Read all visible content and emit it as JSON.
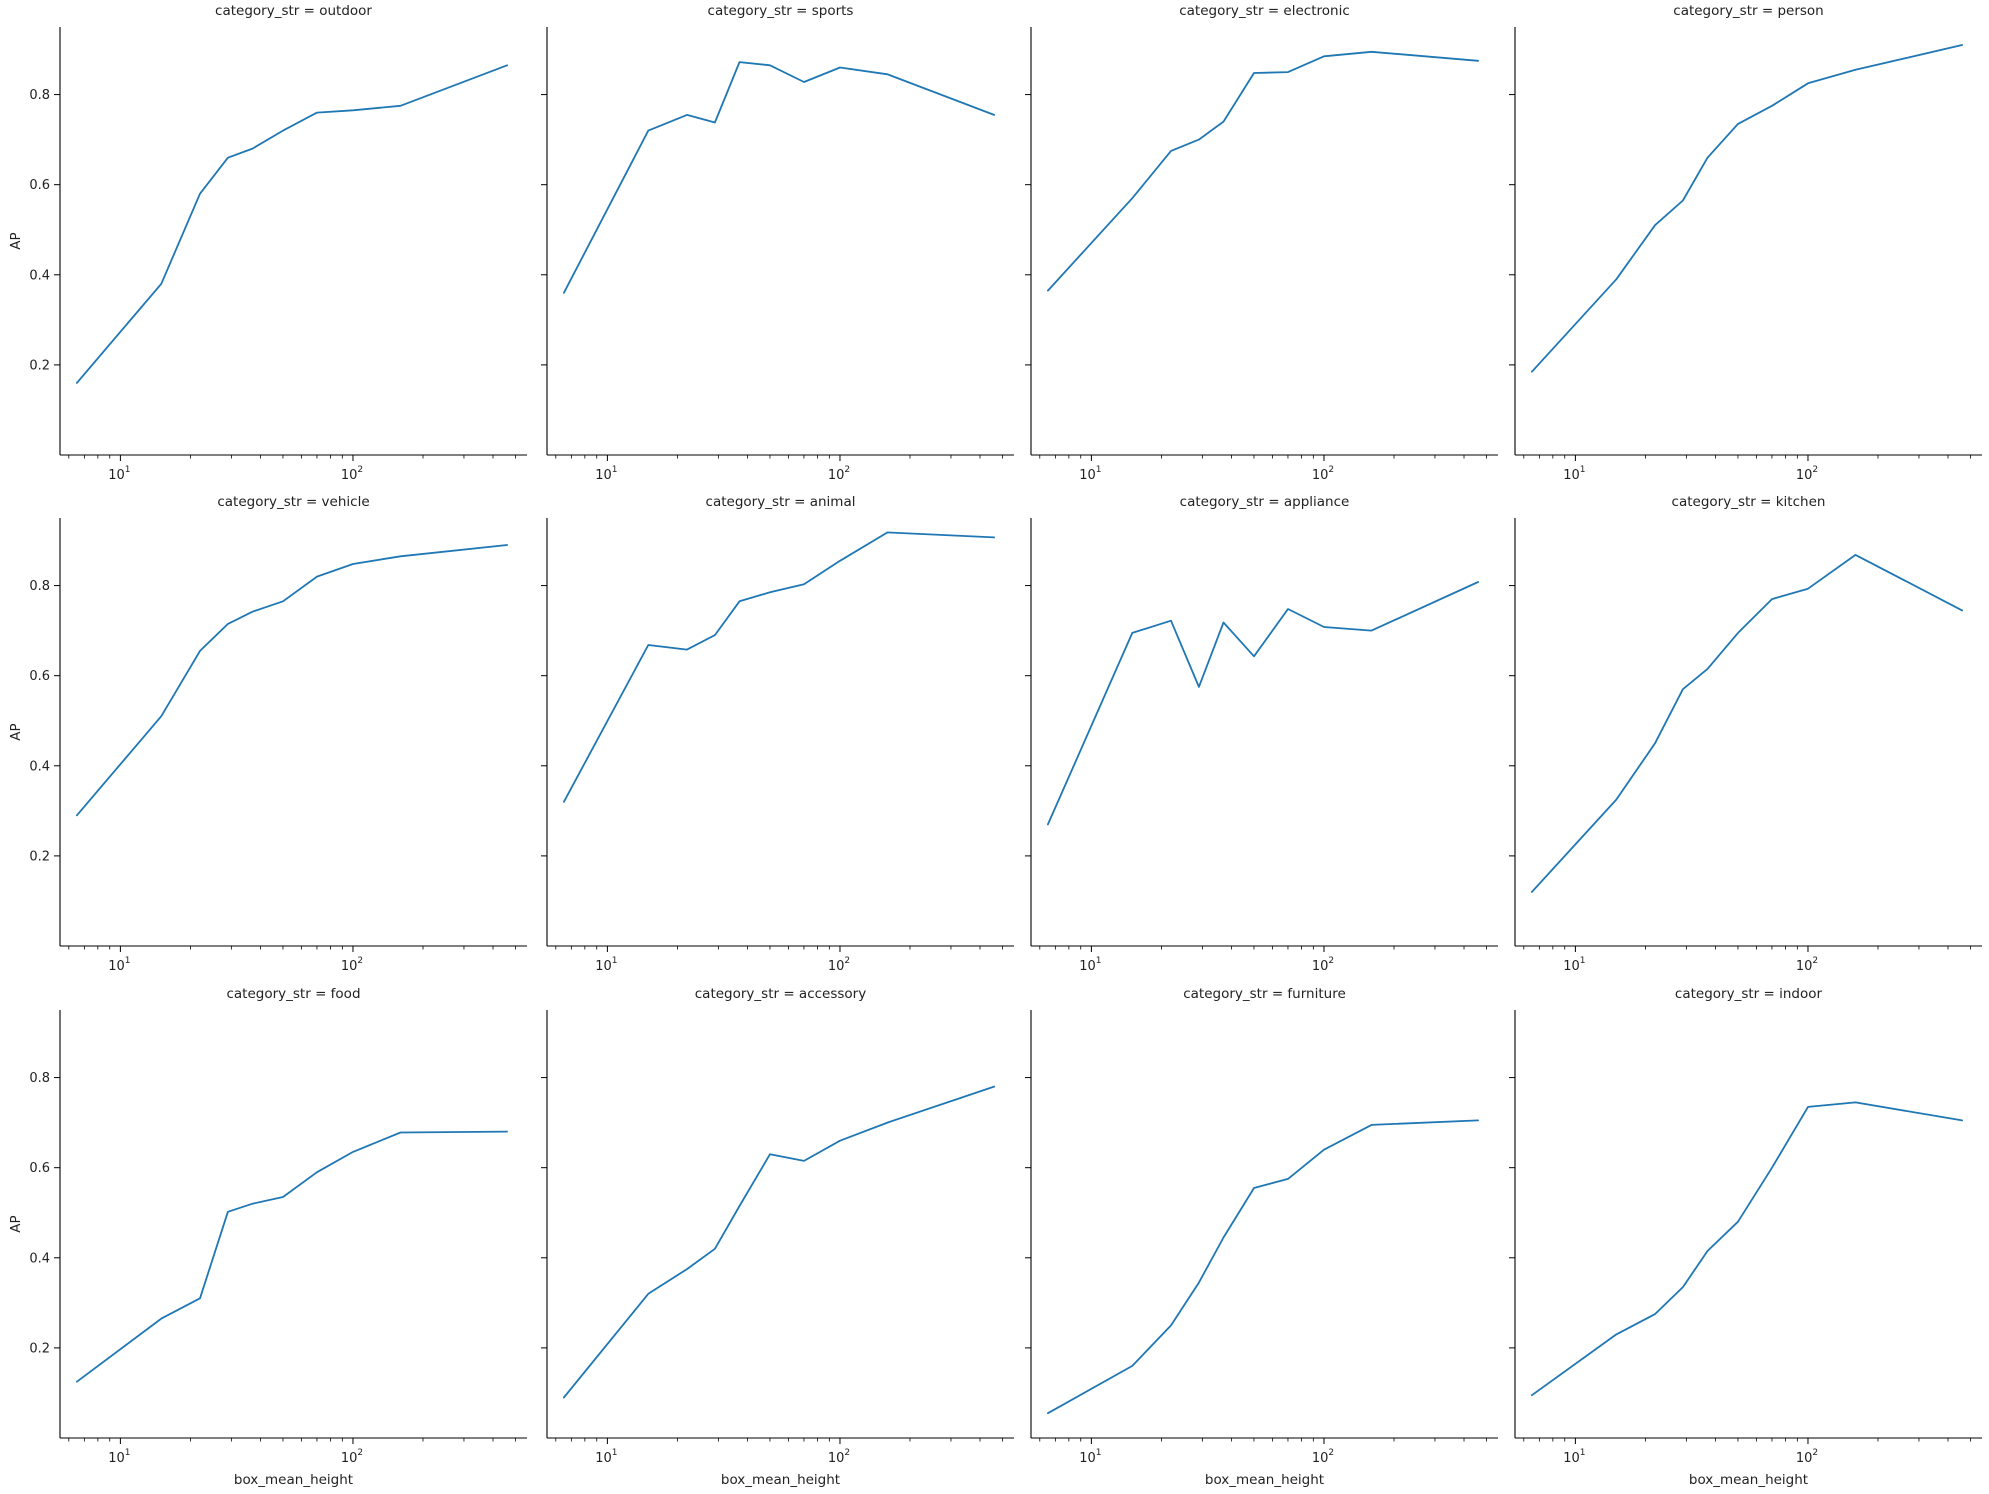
{
  "colors": {
    "line": "#1f77b4",
    "axis": "#000000",
    "text": "#222222"
  },
  "chart_data": {
    "type": "line",
    "facet_variable": "category_str",
    "xlabel": "box_mean_height",
    "ylabel": "AP",
    "x_scale": "log",
    "xlim": [
      5.5,
      560
    ],
    "ylim": [
      0.0,
      0.95
    ],
    "x_ticks": [
      {
        "base": "10",
        "exp": "1",
        "value": 10
      },
      {
        "base": "10",
        "exp": "2",
        "value": 100
      }
    ],
    "y_ticks": [
      {
        "label": "0.2",
        "value": 0.2
      },
      {
        "label": "0.4",
        "value": 0.4
      },
      {
        "label": "0.6",
        "value": 0.6
      },
      {
        "label": "0.8",
        "value": 0.8
      }
    ],
    "x": [
      6.5,
      15,
      22,
      29,
      37,
      50,
      70,
      100,
      160,
      460
    ],
    "panels": [
      {
        "title": "category_str = outdoor",
        "y": [
          0.16,
          0.38,
          0.58,
          0.66,
          0.68,
          0.72,
          0.76,
          0.765,
          0.775,
          0.865
        ]
      },
      {
        "title": "category_str = sports",
        "y": [
          0.36,
          0.72,
          0.755,
          0.738,
          0.872,
          0.865,
          0.828,
          0.86,
          0.845,
          0.755
        ]
      },
      {
        "title": "category_str = electronic",
        "y": [
          0.365,
          0.57,
          0.675,
          0.7,
          0.74,
          0.848,
          0.85,
          0.885,
          0.895,
          0.875
        ]
      },
      {
        "title": "category_str = person",
        "y": [
          0.185,
          0.39,
          0.51,
          0.565,
          0.66,
          0.735,
          0.775,
          0.825,
          0.855,
          0.91
        ]
      },
      {
        "title": "category_str = vehicle",
        "y": [
          0.29,
          0.51,
          0.655,
          0.715,
          0.742,
          0.765,
          0.82,
          0.848,
          0.865,
          0.89
        ]
      },
      {
        "title": "category_str = animal",
        "y": [
          0.32,
          0.668,
          0.658,
          0.69,
          0.765,
          0.785,
          0.803,
          0.855,
          0.918,
          0.907
        ]
      },
      {
        "title": "category_str = appliance",
        "y": [
          0.27,
          0.695,
          0.722,
          0.575,
          0.718,
          0.643,
          0.748,
          0.708,
          0.7,
          0.808
        ]
      },
      {
        "title": "category_str = kitchen",
        "y": [
          0.12,
          0.325,
          0.45,
          0.57,
          0.615,
          0.695,
          0.77,
          0.793,
          0.868,
          0.745
        ]
      },
      {
        "title": "category_str = food",
        "y": [
          0.125,
          0.265,
          0.31,
          0.502,
          0.52,
          0.535,
          0.59,
          0.635,
          0.678,
          0.68
        ]
      },
      {
        "title": "category_str = accessory",
        "y": [
          0.09,
          0.32,
          0.375,
          0.42,
          0.515,
          0.63,
          0.615,
          0.66,
          0.7,
          0.78
        ]
      },
      {
        "title": "category_str = furniture",
        "y": [
          0.055,
          0.16,
          0.25,
          0.345,
          0.445,
          0.555,
          0.575,
          0.64,
          0.695,
          0.705
        ]
      },
      {
        "title": "category_str = indoor",
        "y": [
          0.095,
          0.23,
          0.275,
          0.335,
          0.415,
          0.48,
          0.6,
          0.735,
          0.745,
          0.705
        ]
      }
    ]
  }
}
